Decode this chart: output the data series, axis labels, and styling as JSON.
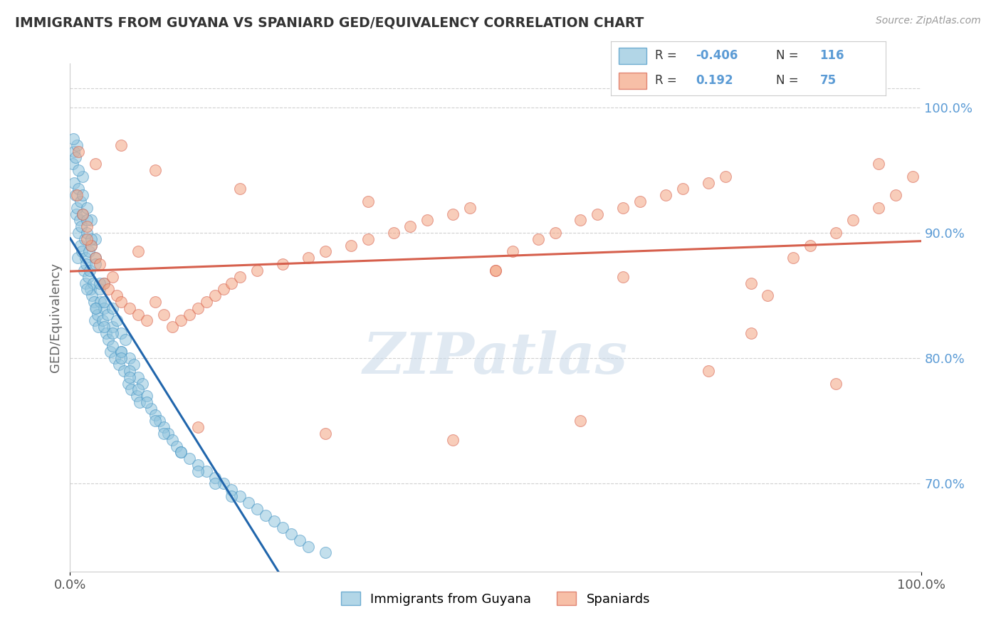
{
  "title": "IMMIGRANTS FROM GUYANA VS SPANIARD GED/EQUIVALENCY CORRELATION CHART",
  "source_text": "Source: ZipAtlas.com",
  "ylabel": "GED/Equivalency",
  "xlim": [
    0.0,
    100.0
  ],
  "ylim": [
    63.0,
    103.5
  ],
  "right_yticks": [
    70.0,
    80.0,
    90.0,
    100.0
  ],
  "right_ytick_labels": [
    "70.0%",
    "80.0%",
    "90.0%",
    "100.0%"
  ],
  "blue_color": "#92c5de",
  "blue_edge_color": "#4393c3",
  "blue_line_color": "#2166ac",
  "pink_color": "#f4a582",
  "pink_edge_color": "#d6604d",
  "pink_line_color": "#d6604d",
  "r_blue": -0.406,
  "n_blue": 116,
  "r_pink": 0.192,
  "n_pink": 75,
  "legend_label_blue": "Immigrants from Guyana",
  "legend_label_pink": "Spaniards",
  "watermark": "ZIPatlas",
  "blue_scatter_x": [
    0.3,
    0.5,
    0.5,
    0.6,
    0.7,
    0.8,
    0.8,
    0.9,
    1.0,
    1.0,
    1.1,
    1.2,
    1.2,
    1.3,
    1.4,
    1.5,
    1.5,
    1.6,
    1.7,
    1.8,
    1.8,
    1.9,
    2.0,
    2.0,
    2.1,
    2.2,
    2.3,
    2.4,
    2.5,
    2.5,
    2.6,
    2.7,
    2.8,
    2.9,
    3.0,
    3.0,
    3.1,
    3.2,
    3.3,
    3.5,
    3.6,
    3.8,
    4.0,
    4.0,
    4.2,
    4.4,
    4.5,
    4.7,
    5.0,
    5.0,
    5.2,
    5.5,
    5.7,
    6.0,
    6.0,
    6.3,
    6.5,
    6.8,
    7.0,
    7.2,
    7.5,
    7.8,
    8.0,
    8.2,
    8.5,
    9.0,
    9.5,
    10.0,
    10.5,
    11.0,
    11.5,
    12.0,
    12.5,
    13.0,
    14.0,
    15.0,
    16.0,
    17.0,
    18.0,
    19.0,
    20.0,
    21.0,
    22.0,
    23.0,
    24.0,
    25.0,
    26.0,
    27.0,
    28.0,
    30.0,
    0.4,
    0.6,
    1.0,
    1.5,
    2.0,
    2.5,
    3.0,
    3.5,
    4.0,
    5.0,
    6.0,
    7.0,
    8.0,
    9.0,
    10.0,
    11.0,
    13.0,
    15.0,
    17.0,
    19.0,
    2.0,
    3.0,
    4.0,
    5.0,
    6.0,
    7.0
  ],
  "blue_scatter_y": [
    95.5,
    94.0,
    96.5,
    93.0,
    91.5,
    92.0,
    97.0,
    88.0,
    90.0,
    93.5,
    91.0,
    92.5,
    89.0,
    90.5,
    88.5,
    91.5,
    94.5,
    87.0,
    89.5,
    86.0,
    88.0,
    87.5,
    90.0,
    92.0,
    86.5,
    88.5,
    87.0,
    85.5,
    89.0,
    91.0,
    85.0,
    86.0,
    84.5,
    83.0,
    88.0,
    89.5,
    84.0,
    83.5,
    82.5,
    85.5,
    84.5,
    83.0,
    86.0,
    84.0,
    82.0,
    83.5,
    81.5,
    80.5,
    84.0,
    82.5,
    80.0,
    83.0,
    79.5,
    82.0,
    80.5,
    79.0,
    81.5,
    78.0,
    80.0,
    77.5,
    79.5,
    77.0,
    78.5,
    76.5,
    78.0,
    77.0,
    76.0,
    75.5,
    75.0,
    74.5,
    74.0,
    73.5,
    73.0,
    72.5,
    72.0,
    71.5,
    71.0,
    70.5,
    70.0,
    69.5,
    69.0,
    68.5,
    68.0,
    67.5,
    67.0,
    66.5,
    66.0,
    65.5,
    65.0,
    64.5,
    97.5,
    96.0,
    95.0,
    93.0,
    91.0,
    89.5,
    87.5,
    86.0,
    84.5,
    82.0,
    80.5,
    79.0,
    77.5,
    76.5,
    75.0,
    74.0,
    72.5,
    71.0,
    70.0,
    69.0,
    85.5,
    84.0,
    82.5,
    81.0,
    80.0,
    78.5
  ],
  "pink_scatter_x": [
    0.8,
    1.5,
    2.0,
    2.5,
    3.0,
    3.5,
    4.0,
    4.5,
    5.0,
    5.5,
    6.0,
    7.0,
    8.0,
    9.0,
    10.0,
    11.0,
    12.0,
    13.0,
    14.0,
    15.0,
    16.0,
    17.0,
    18.0,
    19.0,
    20.0,
    22.0,
    25.0,
    28.0,
    30.0,
    33.0,
    35.0,
    38.0,
    40.0,
    42.0,
    45.0,
    47.0,
    50.0,
    52.0,
    55.0,
    57.0,
    60.0,
    62.0,
    65.0,
    67.0,
    70.0,
    72.0,
    75.0,
    77.0,
    80.0,
    82.0,
    85.0,
    87.0,
    90.0,
    92.0,
    95.0,
    97.0,
    99.0,
    1.0,
    3.0,
    6.0,
    10.0,
    20.0,
    35.0,
    50.0,
    65.0,
    80.0,
    95.0,
    2.0,
    8.0,
    15.0,
    30.0,
    45.0,
    60.0,
    75.0,
    90.0
  ],
  "pink_scatter_y": [
    93.0,
    91.5,
    90.5,
    89.0,
    88.0,
    87.5,
    86.0,
    85.5,
    86.5,
    85.0,
    84.5,
    84.0,
    83.5,
    83.0,
    84.5,
    83.5,
    82.5,
    83.0,
    83.5,
    84.0,
    84.5,
    85.0,
    85.5,
    86.0,
    86.5,
    87.0,
    87.5,
    88.0,
    88.5,
    89.0,
    89.5,
    90.0,
    90.5,
    91.0,
    91.5,
    92.0,
    87.0,
    88.5,
    89.5,
    90.0,
    91.0,
    91.5,
    92.0,
    92.5,
    93.0,
    93.5,
    94.0,
    94.5,
    82.0,
    85.0,
    88.0,
    89.0,
    90.0,
    91.0,
    92.0,
    93.0,
    94.5,
    96.5,
    95.5,
    97.0,
    95.0,
    93.5,
    92.5,
    87.0,
    86.5,
    86.0,
    95.5,
    89.5,
    88.5,
    74.5,
    74.0,
    73.5,
    75.0,
    79.0,
    78.0
  ]
}
